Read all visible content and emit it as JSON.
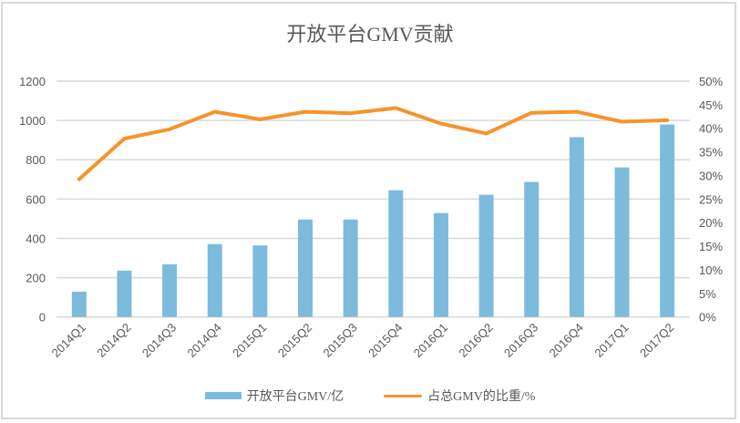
{
  "chart_data": {
    "type": "bar+line",
    "title": "开放平台GMV贡献",
    "categories": [
      "2014Q1",
      "2014Q2",
      "2014Q3",
      "2014Q4",
      "2015Q1",
      "2015Q2",
      "2015Q3",
      "2015Q4",
      "2016Q1",
      "2016Q2",
      "2016Q3",
      "2016Q4",
      "2017Q1",
      "2017Q2"
    ],
    "series": [
      {
        "name": "开放平台GMV/亿",
        "type": "bar",
        "axis": "left",
        "color": "#7dbbdc",
        "values": [
          129,
          236,
          268,
          371,
          364,
          496,
          496,
          645,
          529,
          622,
          687,
          915,
          761,
          979
        ]
      },
      {
        "name": "占总GMV的比重/%",
        "type": "line",
        "axis": "right",
        "color": "#f7932b",
        "values": [
          29.2,
          37.8,
          39.8,
          43.5,
          41.9,
          43.5,
          43.2,
          44.3,
          41.0,
          38.9,
          43.3,
          43.5,
          41.4,
          41.7
        ]
      }
    ],
    "left_axis": {
      "ticks": [
        "0",
        "200",
        "400",
        "600",
        "800",
        "1000",
        "1200"
      ],
      "ylim": [
        0,
        1200
      ]
    },
    "right_axis": {
      "ticks": [
        "0%",
        "5%",
        "10%",
        "15%",
        "20%",
        "25%",
        "30%",
        "35%",
        "40%",
        "45%",
        "50%"
      ],
      "ylim": [
        0,
        50
      ]
    },
    "xlabel": "",
    "ylabel": "",
    "grid": true,
    "legend_position": "bottom"
  },
  "legend": {
    "bar_label": "开放平台GMV/亿",
    "line_label": "占总GMV的比重/%"
  }
}
